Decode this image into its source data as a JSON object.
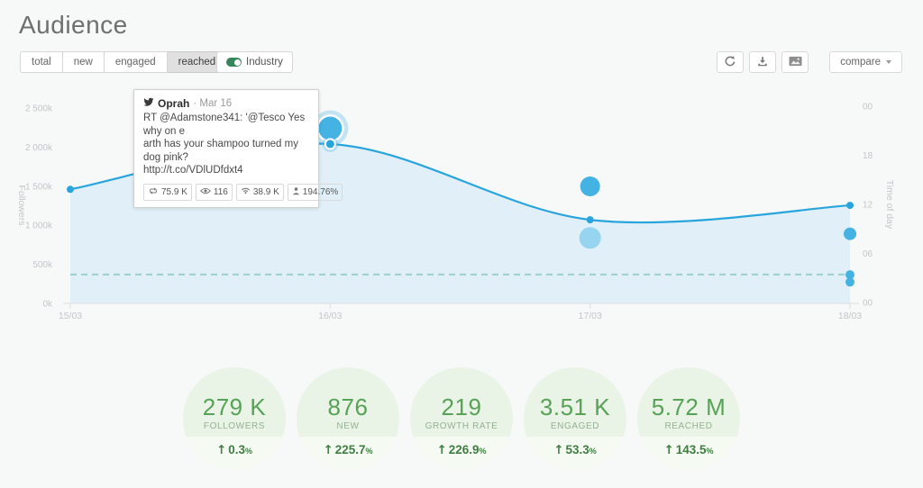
{
  "header": {
    "title": "Audience"
  },
  "toolbar": {
    "tabs": [
      {
        "label": "total",
        "active": false
      },
      {
        "label": "new",
        "active": false
      },
      {
        "label": "engaged",
        "active": false
      },
      {
        "label": "reached",
        "active": true
      }
    ],
    "industry_toggle": {
      "label": "Industry",
      "on": true
    },
    "icon_buttons": [
      {
        "name": "refresh"
      },
      {
        "name": "download"
      },
      {
        "name": "export-image"
      }
    ],
    "compare_label": "compare"
  },
  "tooltip": {
    "author": "Oprah",
    "meta": "· Mar 16",
    "lines": [
      "RT @Adamstone341: '@Tesco Yes why on e",
      "arth has your shampoo turned my dog pink?",
      "http://t.co/VDlUDfdxt4"
    ],
    "stats": [
      {
        "icon": "retweet-icon",
        "value": "75.9 K"
      },
      {
        "icon": "eye-icon",
        "value": "116"
      },
      {
        "icon": "signal-icon",
        "value": "38.9 K"
      },
      {
        "icon": "audience-icon",
        "value": "194.76%"
      }
    ]
  },
  "chart_data": {
    "type": "line+scatter",
    "x_dates": [
      "15/03",
      "16/03",
      "17/03",
      "18/03"
    ],
    "left_axis": {
      "label": "Followers",
      "range_k": [
        0,
        2500
      ],
      "ticks": [
        {
          "label": "2 500k",
          "value_k": 2500
        },
        {
          "label": "2 000k",
          "value_k": 2000
        },
        {
          "label": "1 500k",
          "value_k": 1500
        },
        {
          "label": "1 000k",
          "value_k": 1000
        },
        {
          "label": "500k",
          "value_k": 500
        },
        {
          "label": "0k",
          "value_k": 0
        }
      ]
    },
    "right_axis": {
      "label": "Time of day",
      "range_hours": [
        0,
        24
      ],
      "ticks": [
        {
          "label": "00",
          "hour": 24
        },
        {
          "label": "18",
          "hour": 18
        },
        {
          "label": "12",
          "hour": 12
        },
        {
          "label": "06",
          "hour": 6
        },
        {
          "label": "00",
          "hour": 0
        }
      ]
    },
    "followers_line": {
      "points": [
        {
          "date": "15/03",
          "value_k": 1460,
          "selected": false
        },
        {
          "date": "16/03",
          "value_k": 2040,
          "selected": true
        },
        {
          "date": "17/03",
          "value_k": 1070,
          "selected": false
        },
        {
          "date": "18/03",
          "value_k": 1255,
          "selected": false
        }
      ]
    },
    "industry_line": {
      "style": "dashed",
      "value_k": 370
    },
    "tweet_bubbles": [
      {
        "date": "16/03",
        "time_h": 21.3,
        "r": 13,
        "tone": "strong",
        "selected": true
      },
      {
        "date": "17/03",
        "time_h": 14.2,
        "r": 11,
        "tone": "strong",
        "selected": false
      },
      {
        "date": "17/03",
        "time_h": 7.9,
        "r": 12,
        "tone": "light",
        "selected": false
      },
      {
        "date": "18/03",
        "time_h": 8.4,
        "r": 7,
        "tone": "strong",
        "selected": false
      },
      {
        "date": "18/03",
        "time_h": 3.4,
        "r": 5,
        "tone": "strong",
        "selected": false
      },
      {
        "date": "18/03",
        "time_h": 2.5,
        "r": 5,
        "tone": "strong",
        "selected": false
      }
    ]
  },
  "summary_circles": [
    {
      "value": "279 K",
      "label": "FOLLOWERS",
      "direction": "up",
      "change": "0.3",
      "unit": "%"
    },
    {
      "value": "876",
      "label": "NEW",
      "direction": "up",
      "change": "225.7",
      "unit": "%"
    },
    {
      "value": "219",
      "label": "GROWTH RATE",
      "direction": "up",
      "change": "226.9",
      "unit": "%"
    },
    {
      "value": "3.51 K",
      "label": "ENGAGED",
      "direction": "up",
      "change": "53.3",
      "unit": "%"
    },
    {
      "value": "5.72 M",
      "label": "REACHED",
      "direction": "up",
      "change": "143.5",
      "unit": "%"
    }
  ],
  "colors": {
    "line": "#29a5dd",
    "area": "#e1f0f8",
    "bubble_strong": "#44b2e3",
    "bubble_light": "#96d4ef",
    "halo": "rgba(68,178,227,0.30)",
    "industry_dash": "#9bcfc7",
    "axis_text": "#c2c6c9",
    "axis_line": "#dcdedf"
  }
}
